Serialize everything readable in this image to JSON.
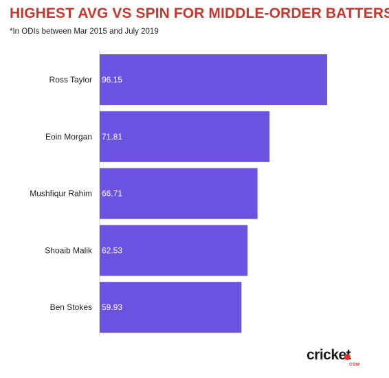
{
  "chart_data": {
    "type": "bar",
    "orientation": "horizontal",
    "title": "HIGHEST AVG VS SPIN FOR MIDDLE-ORDER BATTERS",
    "subtitle": "*In ODIs between Mar 2015 and July 2019",
    "categories": [
      "Ross Taylor",
      "Eoin Morgan",
      "Mushfiqur Rahim",
      "Shoaib Malik",
      "Ben Stokes"
    ],
    "values": [
      96.15,
      71.81,
      66.71,
      62.53,
      59.93
    ],
    "value_labels": [
      "96.15",
      "71.81",
      "66.71",
      "62.53",
      "59.93"
    ],
    "xlim": [
      0,
      96.15
    ],
    "grid": false,
    "bar_color": "#6b52e0",
    "title_color": "#c8372d"
  },
  "logo": {
    "word": "cricket",
    "sub": "COM"
  }
}
